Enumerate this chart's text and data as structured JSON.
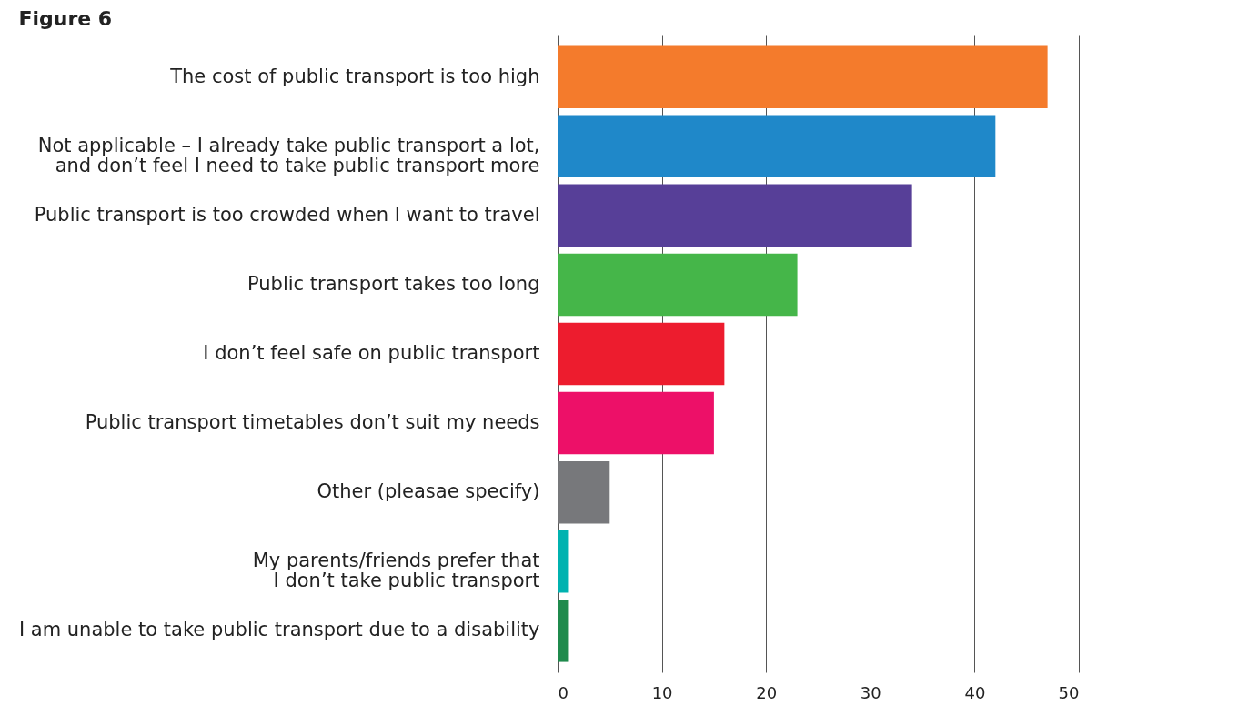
{
  "chart_data": {
    "type": "bar",
    "orientation": "horizontal",
    "title": "Figure 6",
    "categories": [
      "The cost of public transport is too high",
      "Not applicable – I already take public transport a lot,\nand don’t feel I need to take public transport more",
      "Public transport is too crowded when I want to travel",
      "Public transport takes too long",
      "I don’t feel safe on public transport",
      "Public transport timetables don’t suit my needs",
      "Other (pleasae specify)",
      "My parents/friends prefer that\nI don’t take public transport",
      "I am unable to take public transport due to a disability"
    ],
    "values": [
      47,
      42,
      34,
      23,
      16,
      15,
      5,
      1,
      1
    ],
    "colors": [
      "#f47b2c",
      "#1f88c9",
      "#573f98",
      "#45b649",
      "#ed1c2e",
      "#ed1068",
      "#77787b",
      "#00b2b0",
      "#1f8a4c"
    ],
    "xlim": [
      0,
      50
    ],
    "xticks": [
      0,
      10,
      20,
      30,
      40,
      50
    ],
    "grid": "x"
  }
}
